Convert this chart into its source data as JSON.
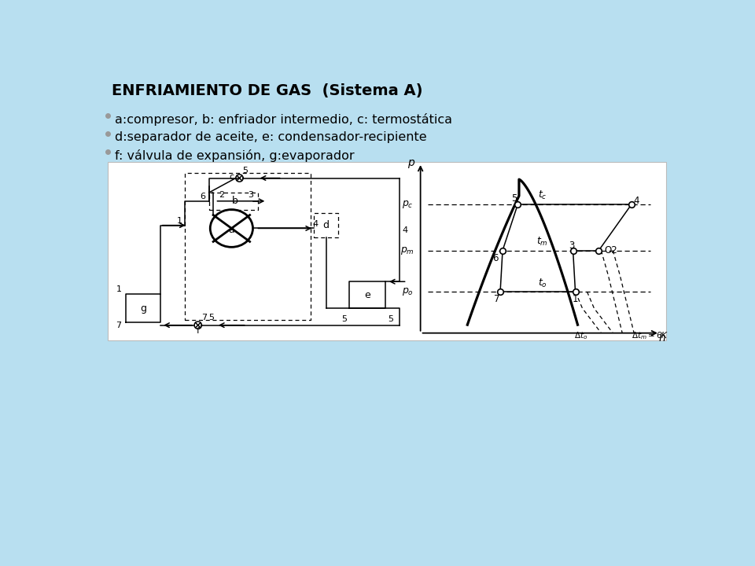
{
  "title": "ENFRIAMIENTO DE GAS  (Sistema A)",
  "bg_color": "#b8dff0",
  "panel_bg": "#ffffff",
  "bullet_items": [
    "a:compresor, b: enfriador intermedio, c: termostática",
    "d:separador de aceite, e: condensador-recipiente",
    "f: válvula de expansión, g:evaporador"
  ],
  "title_fontsize": 14,
  "bullet_fontsize": 11.5
}
